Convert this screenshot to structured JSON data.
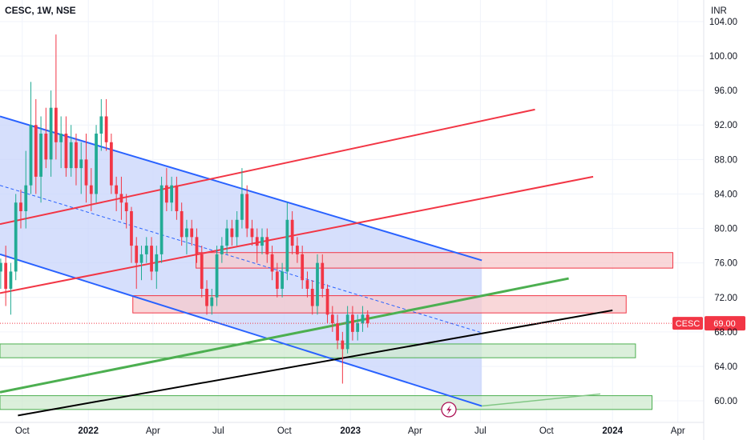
{
  "header": {
    "title": "CESC, 1W, NSE"
  },
  "axis": {
    "currency": "INR"
  },
  "price_tag": {
    "symbol": "CESC",
    "value": "69.00",
    "color": "#f23645"
  },
  "colors": {
    "up": "#22ab94",
    "down": "#f23645",
    "channel_fill": "#c8d4fb",
    "channel_line": "#2962ff",
    "red_line": "#f23645",
    "green_line": "#4caf50",
    "black_line": "#000000",
    "red_zone_fill": "#f7c9cc",
    "green_zone_fill": "#cfe9cf"
  },
  "icons": {
    "bottom_marker": "lightning-bolt-icon"
  },
  "chart_data": {
    "type": "candlestick",
    "symbol": "CESC",
    "interval": "1W",
    "exchange": "NSE",
    "y_axis": {
      "range": [
        57.5,
        106.5
      ],
      "ticks": [
        "104.00",
        "100.00",
        "96.00",
        "92.00",
        "88.00",
        "84.00",
        "80.00",
        "76.00",
        "72.00",
        "68.00",
        "64.00",
        "60.00"
      ]
    },
    "x_axis": {
      "range": [
        "2021-08-31",
        "2024-05-07"
      ],
      "ticks": [
        {
          "date": "2021-10-01",
          "label": "Oct",
          "bold": false
        },
        {
          "date": "2022-01-01",
          "label": "2022",
          "bold": true
        },
        {
          "date": "2022-04-01",
          "label": "Apr",
          "bold": false
        },
        {
          "date": "2022-07-01",
          "label": "Jul",
          "bold": false
        },
        {
          "date": "2022-10-01",
          "label": "Oct",
          "bold": false
        },
        {
          "date": "2023-01-01",
          "label": "2023",
          "bold": true
        },
        {
          "date": "2023-04-01",
          "label": "Apr",
          "bold": false
        },
        {
          "date": "2023-07-01",
          "label": "Jul",
          "bold": false
        },
        {
          "date": "2023-10-01",
          "label": "Oct",
          "bold": false
        },
        {
          "date": "2024-01-01",
          "label": "2024",
          "bold": true
        },
        {
          "date": "2024-04-01",
          "label": "Apr",
          "bold": false
        }
      ]
    },
    "candles_start_date": "2021-09-01",
    "candles": [
      [
        75,
        76.5,
        73,
        76
      ],
      [
        76,
        78,
        71,
        73
      ],
      [
        73,
        76,
        70,
        75
      ],
      [
        75,
        84,
        74,
        83
      ],
      [
        83,
        84.5,
        80,
        82
      ],
      [
        82,
        89,
        80,
        85
      ],
      [
        85,
        97,
        84,
        92
      ],
      [
        92,
        95,
        84,
        86
      ],
      [
        86,
        93,
        83,
        91
      ],
      [
        91,
        94,
        87,
        88
      ],
      [
        88,
        96,
        86,
        94
      ],
      [
        94,
        102.5,
        88,
        90
      ],
      [
        90,
        93,
        87,
        91
      ],
      [
        91,
        93,
        86,
        87
      ],
      [
        87,
        92,
        86,
        90
      ],
      [
        90,
        91,
        85,
        87
      ],
      [
        87,
        90,
        84,
        88
      ],
      [
        88,
        91,
        83,
        85
      ],
      [
        85,
        87,
        82,
        84
      ],
      [
        84,
        92,
        83,
        91
      ],
      [
        91,
        95,
        89,
        93
      ],
      [
        93,
        95,
        89,
        90
      ],
      [
        90,
        91,
        84,
        85
      ],
      [
        85,
        86,
        82,
        84
      ],
      [
        84,
        86,
        81,
        83
      ],
      [
        83,
        84,
        80,
        82
      ],
      [
        82,
        82.5,
        76,
        78
      ],
      [
        78,
        79,
        73,
        76
      ],
      [
        76,
        78,
        74,
        77
      ],
      [
        77,
        79,
        76,
        78
      ],
      [
        78,
        79,
        74,
        75
      ],
      [
        75,
        78,
        73,
        77
      ],
      [
        77,
        86,
        76,
        85
      ],
      [
        85,
        87,
        82,
        83
      ],
      [
        83,
        86,
        82,
        85
      ],
      [
        85,
        86,
        81,
        82
      ],
      [
        82,
        83,
        78,
        79
      ],
      [
        79,
        81,
        77,
        80
      ],
      [
        80,
        81,
        78,
        79
      ],
      [
        79,
        80,
        76,
        77
      ],
      [
        77,
        78,
        72,
        73
      ],
      [
        73,
        74,
        70,
        71
      ],
      [
        71,
        73,
        70,
        72
      ],
      [
        72,
        78,
        71,
        77
      ],
      [
        77,
        79,
        76,
        78
      ],
      [
        78,
        81,
        77,
        80
      ],
      [
        80,
        81,
        78,
        79
      ],
      [
        79,
        82,
        78,
        81
      ],
      [
        81,
        87,
        80,
        84
      ],
      [
        84,
        85,
        79,
        80
      ],
      [
        80,
        81,
        78,
        79
      ],
      [
        79,
        80,
        76,
        78
      ],
      [
        78,
        80,
        77,
        79
      ],
      [
        79,
        80,
        76,
        77
      ],
      [
        77,
        78,
        74,
        75
      ],
      [
        75,
        76,
        72,
        73
      ],
      [
        73,
        76,
        72,
        75
      ],
      [
        75,
        83,
        74,
        81
      ],
      [
        81,
        82,
        77,
        78
      ],
      [
        78,
        79,
        76,
        77
      ],
      [
        77,
        78,
        73,
        74
      ],
      [
        74,
        75,
        72,
        73
      ],
      [
        73,
        74,
        70,
        71
      ],
      [
        71,
        77,
        70,
        76
      ],
      [
        76,
        77,
        72,
        73
      ],
      [
        73,
        73.5,
        69,
        70
      ],
      [
        70,
        71,
        68,
        69
      ],
      [
        69,
        70,
        66,
        67
      ],
      [
        67,
        68,
        62,
        66
      ],
      [
        66,
        71,
        65.5,
        70
      ],
      [
        70,
        71,
        67,
        68
      ],
      [
        68,
        70,
        67,
        69
      ],
      [
        69,
        71,
        68,
        70
      ],
      [
        70,
        70.5,
        68.5,
        69
      ]
    ],
    "last_price": 69.0,
    "drawings": {
      "channel_upper": [
        [
          "2021-08-31",
          93.0
        ],
        [
          "2023-07-03",
          76.3
        ]
      ],
      "channel_lower": [
        [
          "2021-08-31",
          77.0
        ],
        [
          "2023-07-03",
          59.4
        ]
      ],
      "channel_midline": [
        [
          "2021-08-31",
          85.0
        ],
        [
          "2023-07-03",
          67.9
        ]
      ],
      "red_trendline_upper": [
        [
          "2021-08-31",
          80.5
        ],
        [
          "2023-09-15",
          93.8
        ]
      ],
      "red_trendline_lower": [
        [
          "2021-08-31",
          72.5
        ],
        [
          "2023-12-05",
          86.0
        ]
      ],
      "green_trendline": [
        [
          "2021-08-31",
          61.0
        ],
        [
          "2023-11-01",
          74.2
        ],
        [
          "2023-12-15",
          60.8
        ]
      ],
      "black_trendline": [
        [
          "2021-09-25",
          58.3
        ],
        [
          "2024-01-01",
          70.5
        ]
      ],
      "red_zones": [
        {
          "from": "2022-05-31",
          "to": "2024-03-25",
          "high": 77.2,
          "low": 75.4
        },
        {
          "from": "2022-03-04",
          "to": "2024-01-20",
          "high": 72.2,
          "low": 70.2
        }
      ],
      "green_zones": [
        {
          "from": "2021-08-31",
          "to": "2024-02-02",
          "high": 66.6,
          "low": 65.0
        },
        {
          "from": "2021-08-31",
          "to": "2024-02-25",
          "high": 60.6,
          "low": 59.0
        }
      ]
    }
  }
}
